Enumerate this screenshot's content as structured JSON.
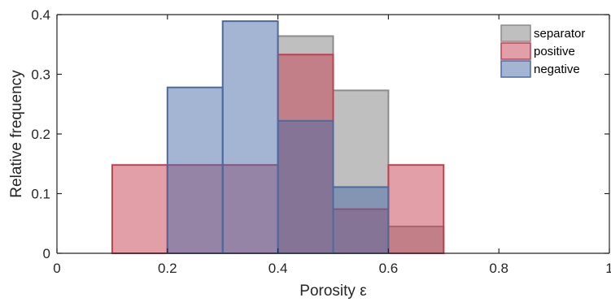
{
  "chart_data": {
    "type": "bar",
    "subtype": "overlapping-histogram",
    "xlabel": "Porosity ε",
    "ylabel": "Relative frequency",
    "xlim": [
      0,
      1
    ],
    "ylim": [
      0,
      0.4
    ],
    "xticks": [
      0,
      0.2,
      0.4,
      0.6,
      0.8,
      1
    ],
    "xtick_labels": [
      "0",
      "0.2",
      "0.4",
      "0.6",
      "0.8",
      "1"
    ],
    "yticks": [
      0,
      0.1,
      0.2,
      0.3,
      0.4
    ],
    "ytick_labels": [
      "0",
      "0.1",
      "0.2",
      "0.3",
      "0.4"
    ],
    "bin_edges": [
      0.1,
      0.2,
      0.3,
      0.4,
      0.5,
      0.6,
      0.7
    ],
    "grid": false,
    "legend_position": "top-right",
    "series": [
      {
        "name": "separator",
        "fill": "#808080",
        "stroke": "#8c8c8c",
        "values": [
          0,
          0,
          0,
          0.364,
          0.273,
          0.045
        ]
      },
      {
        "name": "positive",
        "fill": "#c8404f",
        "stroke": "#c04050",
        "values": [
          0.148,
          0.148,
          0.148,
          0.333,
          0.074,
          0.148
        ]
      },
      {
        "name": "negative",
        "fill": "#4a6aa8",
        "stroke": "#4d6a9e",
        "values": [
          0,
          0.278,
          0.389,
          0.222,
          0.111,
          0
        ]
      }
    ]
  }
}
